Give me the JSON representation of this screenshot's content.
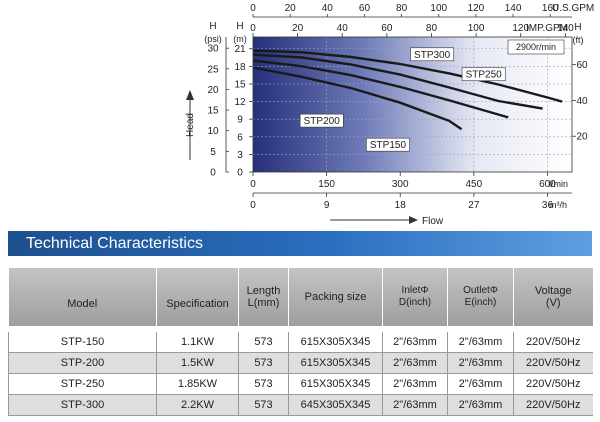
{
  "chart_data": {
    "type": "line",
    "x_axes": [
      {
        "label": "U.S.GPM",
        "ticks": [
          "0",
          "20",
          "40",
          "60",
          "80",
          "100",
          "120",
          "140",
          "160"
        ]
      },
      {
        "label": "IMP.GPM",
        "ticks": [
          "0",
          "20",
          "40",
          "60",
          "80",
          "100",
          "120",
          "140"
        ]
      },
      {
        "label": "l/min",
        "ticks": [
          "0",
          "150",
          "300",
          "450",
          "600"
        ]
      },
      {
        "label": "m³/h",
        "ticks": [
          "0",
          "9",
          "18",
          "27",
          "36"
        ]
      }
    ],
    "y_axes": [
      {
        "label_top": "H",
        "label_unit": "(psi)",
        "ticks": [
          "0",
          "5",
          "10",
          "15",
          "20",
          "25",
          "30"
        ]
      },
      {
        "label_top": "H",
        "label_unit": "(m)",
        "ticks": [
          "0",
          "3",
          "6",
          "9",
          "12",
          "15",
          "18",
          "21"
        ]
      },
      {
        "label_top": "H",
        "label_unit": "(ft)",
        "ticks": [
          "20",
          "40",
          "60"
        ]
      }
    ],
    "speed_label": "2900r/min",
    "head_label": "Head",
    "flow_label": "Flow",
    "xlim_lmin": [
      0,
      650
    ],
    "ylim_m": [
      0,
      23
    ],
    "series": [
      {
        "name": "STP300",
        "x": [
          0,
          100,
          200,
          300,
          400,
          500,
          600,
          630
        ],
        "y": [
          20.7,
          20.4,
          19.6,
          18.4,
          16.8,
          14.9,
          12.7,
          12.0
        ]
      },
      {
        "name": "STP250",
        "x": [
          0,
          100,
          200,
          300,
          400,
          500,
          590
        ],
        "y": [
          20.0,
          19.5,
          18.3,
          16.6,
          14.4,
          12.1,
          10.8
        ]
      },
      {
        "name": "STP200",
        "x": [
          0,
          100,
          200,
          300,
          400,
          520
        ],
        "y": [
          19.0,
          18.0,
          16.5,
          14.5,
          12.2,
          9.3
        ]
      },
      {
        "name": "STP150",
        "x": [
          0,
          100,
          200,
          300,
          400,
          425
        ],
        "y": [
          17.8,
          16.2,
          14.3,
          11.8,
          8.7,
          7.3
        ]
      }
    ]
  },
  "section_title": "Technical Characteristics",
  "table": {
    "headers": [
      {
        "line1": "Model",
        "line2": ""
      },
      {
        "line1": "Specification",
        "line2": ""
      },
      {
        "line1": "Length",
        "line2": "L(mm)"
      },
      {
        "line1": "Packing size",
        "line2": ""
      },
      {
        "line1": "InletΦ",
        "line2": "D(inch)"
      },
      {
        "line1": "OutletΦ",
        "line2": "E(inch)"
      },
      {
        "line1": "Voltage",
        "line2": "(V)"
      }
    ],
    "rows": [
      [
        "STP-150",
        "1.1KW",
        "573",
        "615X305X345",
        "2\"/63mm",
        "2\"/63mm",
        "220V/50Hz"
      ],
      [
        "STP-200",
        "1.5KW",
        "573",
        "615X305X345",
        "2\"/63mm",
        "2\"/63mm",
        "220V/50Hz"
      ],
      [
        "STP-250",
        "1.85KW",
        "573",
        "615X305X345",
        "2\"/63mm",
        "2\"/63mm",
        "220V/50Hz"
      ],
      [
        "STP-300",
        "2.2KW",
        "573",
        "645X305X345",
        "2\"/63mm",
        "2\"/63mm",
        "220V/50Hz"
      ]
    ]
  },
  "colors": {
    "plot_gradient_left": "#26307a",
    "plot_gradient_right": "#ffffff",
    "banner": "#2a6fbf",
    "curve": "#1a1a1a"
  }
}
